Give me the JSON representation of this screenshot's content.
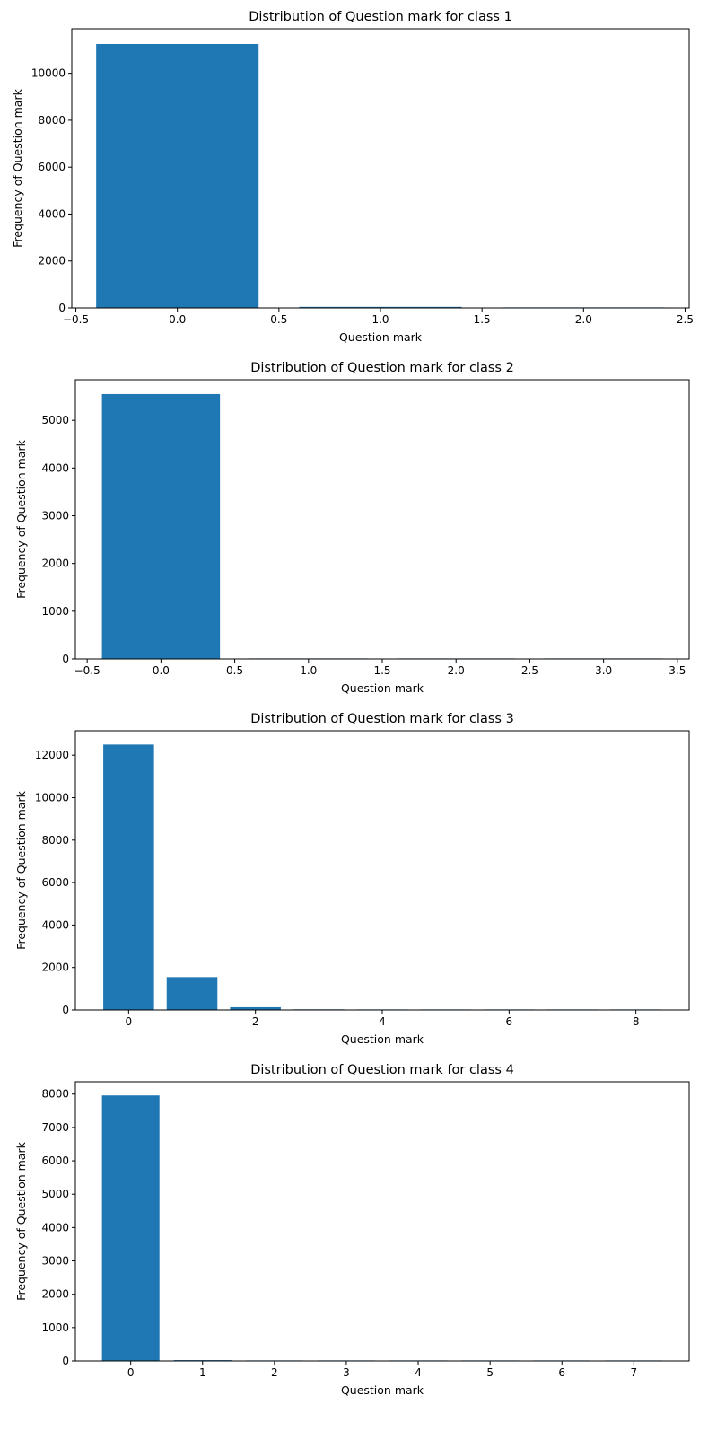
{
  "bar_color": "#1f77b4",
  "chart_data": [
    {
      "type": "bar",
      "title": "Distribution of Question mark for class 1",
      "xlabel": "Question mark",
      "ylabel": "Frequency of Question mark",
      "xlim": [
        -0.52,
        2.52
      ],
      "ylim": [
        0,
        11900
      ],
      "xticks": [
        -0.5,
        0.0,
        0.5,
        1.0,
        1.5,
        2.0,
        2.5
      ],
      "xtick_labels": [
        "−0.5",
        "0.0",
        "0.5",
        "1.0",
        "1.5",
        "2.0",
        "2.5"
      ],
      "yticks": [
        0,
        2000,
        4000,
        6000,
        8000,
        10000
      ],
      "ytick_labels": [
        "0",
        "2000",
        "4000",
        "6000",
        "8000",
        "10000"
      ],
      "bar_width": 0.8,
      "x": [
        0,
        1,
        2
      ],
      "values": [
        11250,
        45,
        3
      ]
    },
    {
      "type": "bar",
      "title": "Distribution of Question mark for class 2",
      "xlabel": "Question mark",
      "ylabel": "Frequency of Question mark",
      "xlim": [
        -0.58,
        3.58
      ],
      "ylim": [
        0,
        5850
      ],
      "xticks": [
        -0.5,
        0.0,
        0.5,
        1.0,
        1.5,
        2.0,
        2.5,
        3.0,
        3.5
      ],
      "xtick_labels": [
        "−0.5",
        "0.0",
        "0.5",
        "1.0",
        "1.5",
        "2.0",
        "2.5",
        "3.0",
        "3.5"
      ],
      "yticks": [
        0,
        1000,
        2000,
        3000,
        4000,
        5000
      ],
      "ytick_labels": [
        "0",
        "1000",
        "2000",
        "3000",
        "4000",
        "5000"
      ],
      "bar_width": 0.8,
      "x": [
        0,
        1,
        2,
        3
      ],
      "values": [
        5550,
        8,
        2,
        1
      ]
    },
    {
      "type": "bar",
      "title": "Distribution of Question mark for class 3",
      "xlabel": "Question mark",
      "ylabel": "Frequency of Question mark",
      "xlim": [
        -0.84,
        8.84
      ],
      "ylim": [
        0,
        13150
      ],
      "xticks": [
        0,
        2,
        4,
        6,
        8
      ],
      "xtick_labels": [
        "0",
        "2",
        "4",
        "6",
        "8"
      ],
      "yticks": [
        0,
        2000,
        4000,
        6000,
        8000,
        10000,
        12000
      ],
      "ytick_labels": [
        "0",
        "2000",
        "4000",
        "6000",
        "8000",
        "10000",
        "12000"
      ],
      "bar_width": 0.8,
      "x": [
        0,
        1,
        2,
        3,
        4,
        5,
        6,
        7,
        8
      ],
      "values": [
        12500,
        1550,
        130,
        30,
        10,
        5,
        3,
        2,
        1
      ]
    },
    {
      "type": "bar",
      "title": "Distribution of Question mark for class 4",
      "xlabel": "Question mark",
      "ylabel": "Frequency of Question mark",
      "xlim": [
        -0.77,
        7.77
      ],
      "ylim": [
        0,
        8370
      ],
      "xticks": [
        0,
        1,
        2,
        3,
        4,
        5,
        6,
        7
      ],
      "xtick_labels": [
        "0",
        "1",
        "2",
        "3",
        "4",
        "5",
        "6",
        "7"
      ],
      "yticks": [
        0,
        1000,
        2000,
        3000,
        4000,
        5000,
        6000,
        7000,
        8000
      ],
      "ytick_labels": [
        "0",
        "1000",
        "2000",
        "3000",
        "4000",
        "5000",
        "6000",
        "7000",
        "8000"
      ],
      "bar_width": 0.8,
      "x": [
        0,
        1,
        2,
        3,
        4,
        5,
        6,
        7
      ],
      "values": [
        7960,
        25,
        12,
        3,
        2,
        1,
        1,
        1
      ]
    }
  ]
}
